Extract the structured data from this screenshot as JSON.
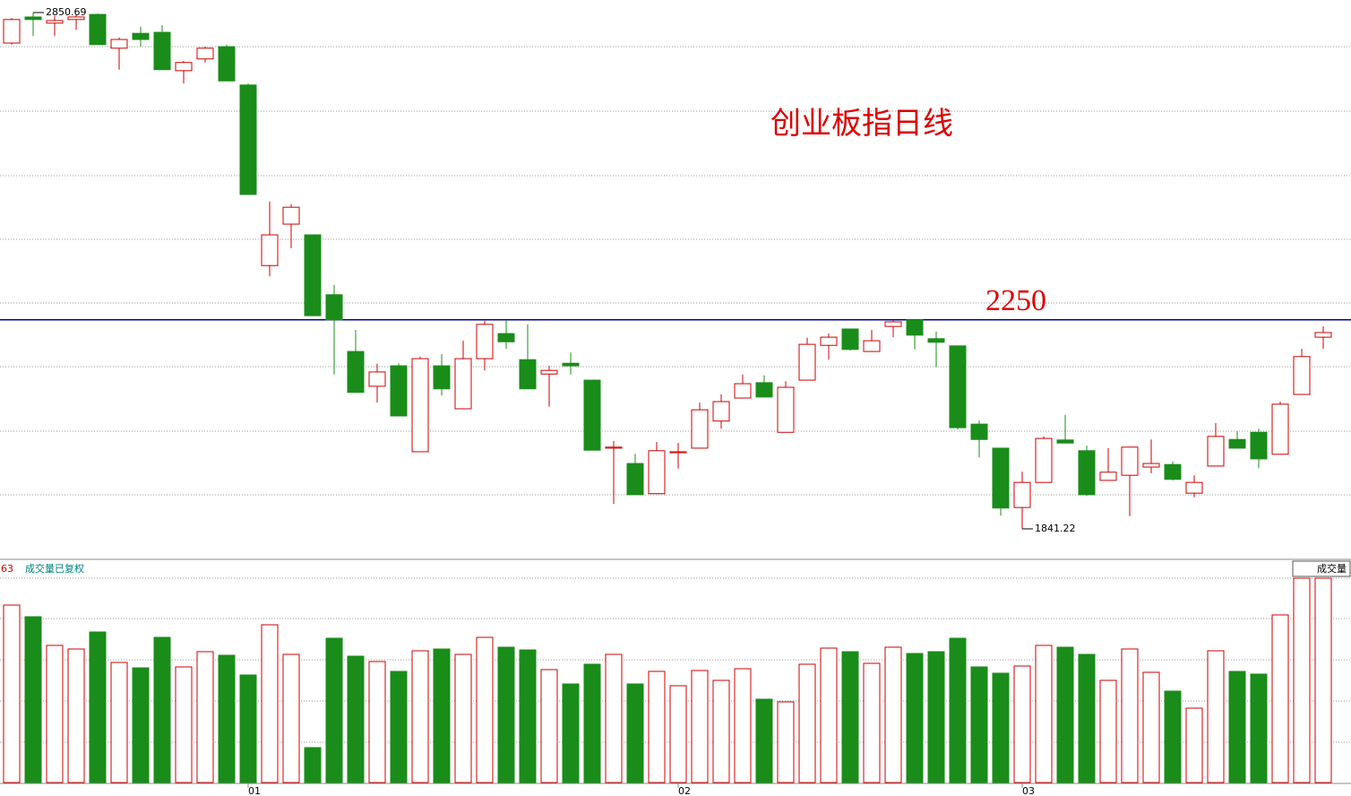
{
  "chart_data": [
    {
      "type": "candlestick",
      "title": "创业板指日线",
      "up_color": "#cc0000",
      "down_color": "#1a8c1a",
      "ylim": [
        1788.6,
        2875.2
      ],
      "hline": {
        "value": 2250,
        "label": "2250",
        "color": "#000090"
      },
      "high_mark": {
        "value": 2850.69,
        "label": "2850.69"
      },
      "low_mark": {
        "value": 1841.22,
        "label": "1841.22"
      },
      "open": [
        2791,
        2842,
        2830,
        2837,
        2847,
        2781,
        2810,
        2812,
        2737,
        2760,
        2784,
        2709,
        2356,
        2437,
        2416,
        2299,
        2188,
        2120,
        2160,
        1992,
        2160,
        2076,
        2174,
        2223,
        2172,
        2144,
        2165,
        2132,
        1999,
        1969,
        1910,
        1990,
        1999,
        2052,
        2097,
        2127,
        2030,
        2132,
        2200,
        2232,
        2188,
        2237,
        2250,
        2213,
        2199,
        2046,
        1999,
        1883,
        1932,
        2015,
        1994,
        1936,
        1946,
        1962,
        1967,
        1911,
        1964,
        2016,
        2030,
        1987,
        2104,
        2216
      ],
      "high": [
        2840,
        2850.69,
        2844,
        2847,
        2849,
        2802,
        2823,
        2826,
        2756,
        2784,
        2788,
        2712,
        2481,
        2476,
        2416,
        2318,
        2230,
        2164,
        2165,
        2178,
        2183,
        2209,
        2248,
        2248,
        2241,
        2160,
        2186,
        2132,
        2013,
        1988,
        2011,
        2009,
        2088,
        2104,
        2143,
        2141,
        2130,
        2215,
        2223,
        2232,
        2230,
        2250,
        2250,
        2227,
        2199,
        2053,
        1999,
        1953,
        2022,
        2064,
        2004,
        1999,
        2001,
        2016,
        1973,
        1946,
        2048,
        2032,
        2037,
        2090,
        2193,
        2237
      ],
      "low": [
        2788,
        2805,
        2805,
        2817,
        2788,
        2739,
        2784,
        2739,
        2712,
        2753,
        2717,
        2495,
        2335,
        2390,
        2258,
        2143,
        2108,
        2088,
        2062,
        1992,
        2102,
        2076,
        2151,
        2193,
        2115,
        2080,
        2143,
        1995,
        1890,
        1908,
        1910,
        1959,
        1999,
        2037,
        2097,
        2099,
        2030,
        2132,
        2172,
        2190,
        2188,
        2216,
        2192,
        2157,
        2036,
        1981,
        1867,
        1841.22,
        1932,
        2009,
        1906,
        1936,
        1866,
        1950,
        1936,
        1903,
        1964,
        1999,
        1960,
        1987,
        2104,
        2193
      ],
      "close": [
        2837,
        2837,
        2835,
        2842,
        2788,
        2798,
        2798,
        2739,
        2753,
        2781,
        2717,
        2495,
        2416,
        2470,
        2258,
        2250,
        2108,
        2148,
        2062,
        2174,
        2115,
        2174,
        2241,
        2207,
        2115,
        2151,
        2160,
        1995,
        2001,
        1908,
        1994,
        1992,
        2074,
        2090,
        2125,
        2099,
        2118,
        2202,
        2216,
        2192,
        2209,
        2246,
        2220,
        2206,
        2039,
        2016,
        1882,
        1932,
        2018,
        2009,
        1908,
        1952,
        2001,
        1969,
        1938,
        1932,
        2022,
        1999,
        1978,
        2085,
        2178,
        2225
      ]
    },
    {
      "type": "bar",
      "prefix": "63",
      "title": "成交量已复权",
      "name": "成交量",
      "ylim": [
        0,
        228
      ],
      "categories": [
        null,
        null,
        null,
        null,
        null,
        null,
        null,
        null,
        null,
        null,
        null,
        "01",
        null,
        null,
        null,
        null,
        null,
        null,
        null,
        null,
        null,
        null,
        null,
        null,
        null,
        null,
        null,
        null,
        null,
        null,
        null,
        "02",
        null,
        null,
        null,
        null,
        null,
        null,
        null,
        null,
        null,
        null,
        null,
        null,
        null,
        null,
        null,
        "03",
        null,
        null,
        null,
        null,
        null,
        null,
        null,
        null,
        null,
        null,
        null,
        null,
        null,
        null
      ],
      "values": [
        198,
        185,
        153,
        149,
        168,
        134,
        128,
        162,
        129,
        146,
        142,
        120,
        176,
        143,
        39,
        161,
        141,
        135,
        124,
        147,
        149,
        143,
        162,
        151,
        148,
        126,
        110,
        132,
        143,
        110,
        124,
        108,
        125,
        114,
        127,
        93,
        90,
        132,
        150,
        146,
        133,
        151,
        144,
        146,
        161,
        129,
        122,
        130,
        153,
        151,
        143,
        114,
        149,
        123,
        102,
        83,
        147,
        124,
        121,
        187,
        228,
        228
      ]
    }
  ]
}
